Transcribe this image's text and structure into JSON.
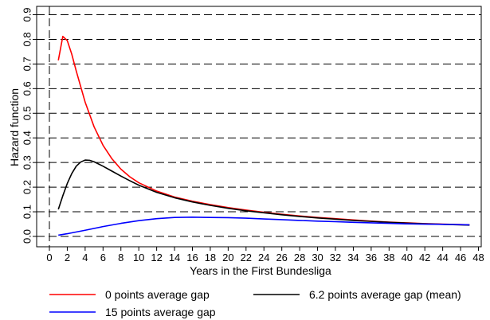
{
  "chart_data": {
    "type": "line",
    "xlabel": "Years in the First Bundesliga",
    "ylabel": "Hazard function",
    "xlim": [
      0,
      48
    ],
    "ylim": [
      0,
      0.9
    ],
    "x_ticks": [
      0,
      2,
      4,
      6,
      8,
      10,
      12,
      14,
      16,
      18,
      20,
      22,
      24,
      26,
      28,
      30,
      32,
      34,
      36,
      38,
      40,
      42,
      44,
      46,
      48
    ],
    "x_tick_labels": [
      "0",
      "2",
      "4",
      "6",
      "8",
      "10",
      "12",
      "14",
      "16",
      "18",
      "20",
      "22",
      "24",
      "26",
      "28",
      "30",
      "32",
      "34",
      "36",
      "38",
      "40",
      "42",
      "44",
      "46",
      "48"
    ],
    "y_ticks": [
      0,
      0.1,
      0.2,
      0.3,
      0.4,
      0.5,
      0.6,
      0.7,
      0.8,
      0.9
    ],
    "y_tick_labels": [
      "0.0",
      "0.1",
      "0.2",
      "0.3",
      "0.4",
      "0.5",
      "0.6",
      "0.7",
      "0.8",
      "0.9"
    ],
    "grid": "horizontal dashed",
    "vertical_reference_line_x": 0,
    "legend_position": "bottom",
    "series": [
      {
        "name": "0 points average gap",
        "color": "#ff0000",
        "points": [
          [
            1,
            0.715
          ],
          [
            1.5,
            0.812
          ],
          [
            2,
            0.795
          ],
          [
            2.5,
            0.74
          ],
          [
            3,
            0.672
          ],
          [
            4,
            0.545
          ],
          [
            5,
            0.445
          ],
          [
            6,
            0.37
          ],
          [
            7,
            0.315
          ],
          [
            8,
            0.273
          ],
          [
            9,
            0.242
          ],
          [
            10,
            0.218
          ],
          [
            12,
            0.184
          ],
          [
            14,
            0.16
          ],
          [
            16,
            0.143
          ],
          [
            18,
            0.129
          ],
          [
            20,
            0.117
          ],
          [
            22,
            0.107
          ],
          [
            24,
            0.098
          ],
          [
            26,
            0.09
          ],
          [
            28,
            0.083
          ],
          [
            30,
            0.077
          ],
          [
            32,
            0.072
          ],
          [
            34,
            0.067
          ],
          [
            36,
            0.062
          ],
          [
            38,
            0.058
          ],
          [
            40,
            0.055
          ],
          [
            42,
            0.052
          ],
          [
            44,
            0.05
          ],
          [
            47,
            0.047
          ]
        ]
      },
      {
        "name": "6.2 points average gap (mean)",
        "color": "#000000",
        "points": [
          [
            1,
            0.11
          ],
          [
            1.5,
            0.165
          ],
          [
            2,
            0.215
          ],
          [
            2.5,
            0.255
          ],
          [
            3,
            0.285
          ],
          [
            3.5,
            0.302
          ],
          [
            4,
            0.31
          ],
          [
            4.5,
            0.309
          ],
          [
            5,
            0.303
          ],
          [
            6,
            0.285
          ],
          [
            7,
            0.265
          ],
          [
            8,
            0.245
          ],
          [
            9,
            0.226
          ],
          [
            10,
            0.208
          ],
          [
            12,
            0.179
          ],
          [
            14,
            0.157
          ],
          [
            16,
            0.14
          ],
          [
            18,
            0.126
          ],
          [
            20,
            0.114
          ],
          [
            22,
            0.104
          ],
          [
            24,
            0.096
          ],
          [
            26,
            0.088
          ],
          [
            28,
            0.081
          ],
          [
            30,
            0.075
          ],
          [
            32,
            0.07
          ],
          [
            34,
            0.065
          ],
          [
            36,
            0.061
          ],
          [
            38,
            0.057
          ],
          [
            40,
            0.054
          ],
          [
            42,
            0.051
          ],
          [
            44,
            0.049
          ],
          [
            47,
            0.046
          ]
        ]
      },
      {
        "name": "15 points average gap",
        "color": "#0000ff",
        "points": [
          [
            1,
            0.005
          ],
          [
            2,
            0.011
          ],
          [
            4,
            0.025
          ],
          [
            6,
            0.04
          ],
          [
            8,
            0.053
          ],
          [
            10,
            0.064
          ],
          [
            12,
            0.072
          ],
          [
            14,
            0.077
          ],
          [
            16,
            0.078
          ],
          [
            18,
            0.077
          ],
          [
            20,
            0.076
          ],
          [
            22,
            0.074
          ],
          [
            24,
            0.071
          ],
          [
            26,
            0.068
          ],
          [
            28,
            0.065
          ],
          [
            30,
            0.062
          ],
          [
            32,
            0.06
          ],
          [
            34,
            0.057
          ],
          [
            36,
            0.055
          ],
          [
            38,
            0.053
          ],
          [
            40,
            0.051
          ],
          [
            42,
            0.05
          ],
          [
            44,
            0.049
          ],
          [
            47,
            0.047
          ]
        ]
      }
    ]
  }
}
